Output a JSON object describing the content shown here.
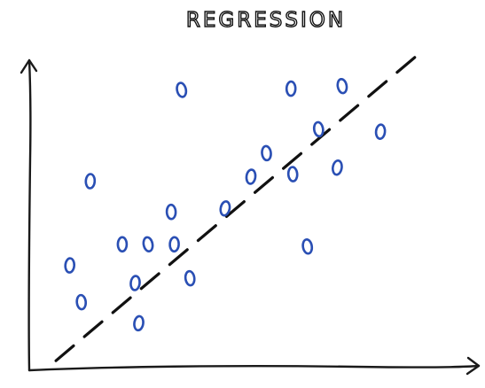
{
  "chart_data": {
    "type": "scatter",
    "title": "REGRESSION",
    "xlabel": "",
    "ylabel": "",
    "xlim": [
      0,
      100
    ],
    "ylim": [
      0,
      100
    ],
    "grid": false,
    "colors": {
      "points": "#2a4fb4",
      "trendline": "#111111",
      "axes": "#1a1a1a"
    },
    "points": [
      {
        "x": 33.2,
        "y": 86.9
      },
      {
        "x": 57.8,
        "y": 87.3
      },
      {
        "x": 69.3,
        "y": 88.1
      },
      {
        "x": 12.7,
        "y": 57.9
      },
      {
        "x": 64.0,
        "y": 74.4
      },
      {
        "x": 77.9,
        "y": 73.6
      },
      {
        "x": 52.3,
        "y": 66.8
      },
      {
        "x": 48.8,
        "y": 59.3
      },
      {
        "x": 58.2,
        "y": 60.1
      },
      {
        "x": 68.2,
        "y": 62.2
      },
      {
        "x": 30.9,
        "y": 48.1
      },
      {
        "x": 43.0,
        "y": 49.2
      },
      {
        "x": 19.9,
        "y": 37.8
      },
      {
        "x": 25.7,
        "y": 37.8
      },
      {
        "x": 31.6,
        "y": 37.8
      },
      {
        "x": 61.5,
        "y": 37.1
      },
      {
        "x": 8.1,
        "y": 31.1
      },
      {
        "x": 35.1,
        "y": 27.0
      },
      {
        "x": 22.8,
        "y": 25.5
      },
      {
        "x": 10.7,
        "y": 19.4
      },
      {
        "x": 23.6,
        "y": 12.7
      }
    ],
    "trendline": {
      "style": "dashed",
      "x": [
        5.0,
        87.0
      ],
      "y": [
        0.8,
        98.9
      ]
    }
  }
}
